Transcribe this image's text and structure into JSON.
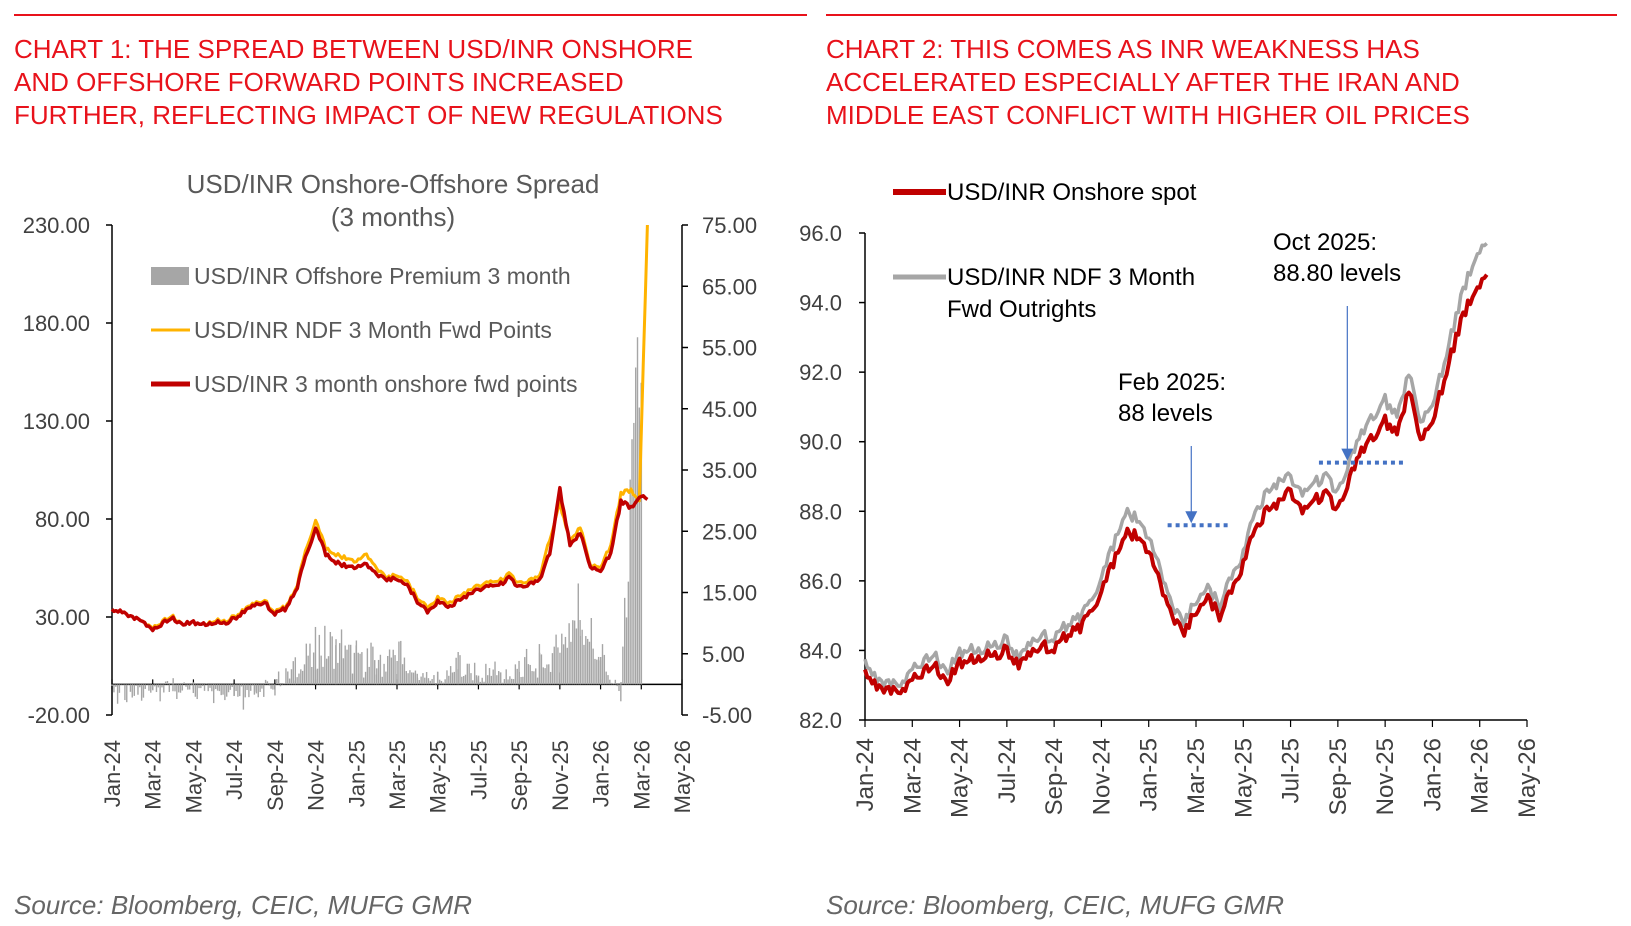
{
  "colors": {
    "title_red": "#e8121b",
    "gray_bar": "#a6a6a6",
    "orange": "#ffb300",
    "red_line": "#c00000",
    "ndf_gray": "#a6a6a6",
    "annotation_blue": "#4472c4",
    "axis": "#000000"
  },
  "chart1": {
    "heading": [
      "CHART 1: THE SPREAD BETWEEN USD/INR ONSHORE",
      "AND OFFSHORE FORWARD POINTS INCREASED",
      "FURTHER, REFLECTING IMPACT OF NEW REGULATIONS"
    ],
    "source": "Source: Bloomberg, CEIC, MUFG GMR"
  },
  "chart2": {
    "heading": [
      "CHART 2: THIS COMES AS INR WEAKNESS HAS",
      "ACCELERATED ESPECIALLY AFTER THE IRAN AND",
      "MIDDLE EAST CONFLICT WITH HIGHER OIL PRICES"
    ],
    "source": "Source: Bloomberg, CEIC, MUFG GMR"
  },
  "chart_data": [
    {
      "type": "line",
      "title": "USD/INR Onshore-Offshore Spread",
      "subtitle": "(3 months)",
      "x_tick_labels": [
        "Jan-24",
        "Mar-24",
        "May-24",
        "Jul-24",
        "Sep-24",
        "Nov-24",
        "Jan-25",
        "Mar-25",
        "May-25",
        "Jul-25",
        "Sep-25",
        "Nov-25",
        "Jan-26",
        "Mar-26",
        "May-26"
      ],
      "y_left": {
        "range": [
          -20,
          230
        ],
        "ticks": [
          -20,
          30,
          80,
          130,
          180,
          230
        ],
        "tick_labels": [
          "-20.00",
          "30.00",
          "80.00",
          "130.00",
          "180.00",
          "230.00"
        ]
      },
      "y_right": {
        "range": [
          -5,
          75
        ],
        "ticks": [
          -5,
          5,
          15,
          25,
          35,
          45,
          55,
          65,
          75
        ],
        "tick_labels": [
          "-5.00",
          "5.00",
          "15.00",
          "25.00",
          "35.00",
          "45.00",
          "55.00",
          "65.00",
          "75.00"
        ]
      },
      "legend_position": "top-left",
      "series": [
        {
          "name": "USD/INR Offshore Premium 3 month",
          "kind": "bar",
          "axis": "right",
          "x": [
            0,
            1,
            2,
            3,
            4,
            5,
            6,
            7,
            8,
            9,
            10,
            11,
            12,
            13,
            14,
            15,
            16,
            17,
            18,
            19,
            20,
            21,
            22,
            23,
            24,
            25,
            26
          ],
          "values": [
            -1.5,
            -0.8,
            -1.2,
            -0.5,
            -0.8,
            -1.5,
            -2.5,
            -1,
            -0.5,
            2.5,
            5.5,
            6.5,
            4.5,
            3.5,
            4.5,
            2,
            1,
            2.5,
            1.5,
            1.5,
            2.5,
            3,
            6,
            12,
            4,
            -0.5,
            58
          ]
        },
        {
          "name": "USD/INR NDF 3 Month Fwd Points",
          "kind": "line",
          "axis": "left",
          "x": [
            0,
            0.5,
            1,
            1.5,
            2,
            2.5,
            3,
            3.5,
            4,
            4.5,
            5,
            5.5,
            6,
            6.5,
            7,
            7.5,
            8,
            8.5,
            9,
            9.5,
            10,
            10.5,
            11,
            11.5,
            12,
            12.5,
            13,
            13.5,
            14,
            14.5,
            15,
            15.5,
            16,
            16.5,
            17,
            17.5,
            18,
            18.5,
            19,
            19.5,
            20,
            20.5,
            21,
            21.5,
            22,
            22.5,
            23,
            23.5,
            24,
            24.5,
            25,
            25.5,
            25.9,
            26.3
          ],
          "values": [
            33,
            33,
            30,
            28,
            25,
            28,
            30,
            27,
            27,
            26,
            28,
            28,
            30,
            34,
            37,
            38,
            33,
            35,
            43,
            63,
            80,
            65,
            62,
            60,
            58,
            62,
            55,
            50,
            52,
            48,
            40,
            35,
            40,
            37,
            40,
            43,
            46,
            48,
            48,
            52,
            47,
            49,
            51,
            70,
            88,
            69,
            76,
            56,
            55,
            67,
            93,
            95,
            89,
            230
          ]
        },
        {
          "name": "USD/INR 3 month onshore fwd points",
          "kind": "line",
          "axis": "left",
          "x": [
            0,
            0.5,
            1,
            1.5,
            2,
            2.5,
            3,
            3.5,
            4,
            4.5,
            5,
            5.5,
            6,
            6.5,
            7,
            7.5,
            8,
            8.5,
            9,
            9.5,
            10,
            10.5,
            11,
            11.5,
            12,
            12.5,
            13,
            13.5,
            14,
            14.5,
            15,
            15.5,
            16,
            16.5,
            17,
            17.5,
            18,
            18.5,
            19,
            19.5,
            20,
            20.5,
            21,
            21.5,
            22,
            22.5,
            23,
            23.5,
            24,
            24.5,
            25,
            25.5,
            26,
            26.3
          ],
          "values": [
            33,
            33,
            30,
            28,
            24,
            27,
            29,
            27,
            27,
            26,
            27,
            27,
            29,
            33,
            36,
            37,
            32,
            34,
            42,
            60,
            76,
            62,
            58,
            56,
            55,
            57,
            52,
            49,
            50,
            46,
            38,
            33,
            38,
            35,
            38,
            41,
            44,
            46,
            46,
            50,
            45,
            47,
            49,
            63,
            95,
            67,
            73,
            55,
            53,
            63,
            89,
            86,
            92,
            90
          ]
        }
      ]
    },
    {
      "type": "line",
      "title": "",
      "x_tick_labels": [
        "Jan-24",
        "Mar-24",
        "May-24",
        "Jul-24",
        "Sep-24",
        "Nov-24",
        "Jan-25",
        "Mar-25",
        "May-25",
        "Jul-25",
        "Sep-25",
        "Nov-25",
        "Jan-26",
        "Mar-26",
        "May-26"
      ],
      "y": {
        "range": [
          82,
          96
        ],
        "ticks": [
          82,
          84,
          86,
          88,
          90,
          92,
          94,
          96
        ],
        "tick_labels": [
          "82.0",
          "84.0",
          "86.0",
          "88.0",
          "90.0",
          "92.0",
          "94.0",
          "96.0"
        ]
      },
      "legend_position": "top-left",
      "series": [
        {
          "name": "USD/INR Onshore spot",
          "kind": "line",
          "x": [
            0,
            0.5,
            1,
            1.5,
            2,
            2.5,
            3,
            3.5,
            4,
            4.5,
            5,
            5.5,
            6,
            6.5,
            7,
            7.5,
            8,
            8.5,
            9,
            9.5,
            10,
            10.5,
            11,
            11.5,
            12,
            12.5,
            13,
            13.5,
            14,
            14.5,
            15,
            15.5,
            16,
            16.5,
            17,
            17.5,
            18,
            18.5,
            19,
            19.5,
            20,
            20.5,
            21,
            21.5,
            22,
            22.5,
            23,
            23.5,
            24,
            24.5,
            25,
            25.5,
            26,
            26.3
          ],
          "values": [
            83.3,
            83.0,
            82.9,
            82.8,
            83.3,
            83.4,
            83.5,
            83.2,
            83.6,
            83.7,
            83.8,
            83.9,
            84.0,
            83.6,
            83.9,
            84.1,
            84.1,
            84.4,
            84.6,
            85.0,
            85.8,
            86.5,
            87.4,
            87.3,
            86.8,
            85.9,
            85.0,
            84.5,
            85.2,
            85.5,
            85.0,
            85.8,
            86.5,
            87.5,
            88.0,
            88.2,
            88.6,
            88.0,
            88.3,
            88.5,
            88.0,
            89.0,
            89.8,
            90.2,
            90.6,
            90.3,
            91.5,
            90.0,
            90.5,
            91.8,
            93.0,
            94.0,
            94.5,
            94.8
          ]
        },
        {
          "name": "USD/INR NDF 3 Month Fwd Outrights",
          "kind": "line",
          "x": [
            0,
            0.5,
            1,
            1.5,
            2,
            2.5,
            3,
            3.5,
            4,
            4.5,
            5,
            5.5,
            6,
            6.5,
            7,
            7.5,
            8,
            8.5,
            9,
            9.5,
            10,
            10.5,
            11,
            11.5,
            12,
            12.5,
            13,
            13.5,
            14,
            14.5,
            15,
            15.5,
            16,
            16.5,
            17,
            17.5,
            18,
            18.5,
            19,
            19.5,
            20,
            20.5,
            21,
            21.5,
            22,
            22.5,
            23,
            23.5,
            24,
            24.5,
            25,
            25.5,
            26,
            26.3
          ],
          "values": [
            83.6,
            83.2,
            83.1,
            83.0,
            83.6,
            83.7,
            83.8,
            83.5,
            83.9,
            84.0,
            84.0,
            84.2,
            84.3,
            83.8,
            84.2,
            84.4,
            84.4,
            84.7,
            84.9,
            85.3,
            86.2,
            87.0,
            88.0,
            87.8,
            87.2,
            86.3,
            85.3,
            84.8,
            85.5,
            85.8,
            85.3,
            86.2,
            86.8,
            88.0,
            88.5,
            88.8,
            89.0,
            88.5,
            88.8,
            89.0,
            88.5,
            89.5,
            90.3,
            90.8,
            91.2,
            90.8,
            92.0,
            90.5,
            91.0,
            92.3,
            93.6,
            94.8,
            95.5,
            95.7
          ]
        }
      ],
      "annotations": [
        {
          "text": [
            "Feb 2025:",
            "88 levels"
          ],
          "x": 13.8,
          "level": 87.6,
          "dotted_x_range": [
            12.8,
            15.4
          ]
        },
        {
          "text": [
            "Oct 2025:",
            "88.80 levels"
          ],
          "x": 20.4,
          "level": 89.4,
          "dotted_x_range": [
            19.2,
            22.8
          ]
        }
      ]
    }
  ]
}
